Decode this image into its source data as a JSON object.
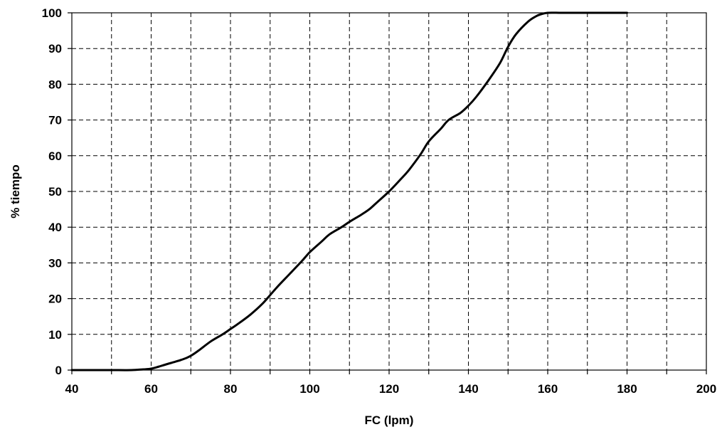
{
  "chart_data": {
    "type": "line",
    "title": "",
    "xlabel": "FC (lpm)",
    "ylabel": "% tiempo",
    "xlim": [
      40,
      200
    ],
    "ylim": [
      0,
      100
    ],
    "x_ticks": [
      40,
      60,
      80,
      100,
      120,
      140,
      160,
      180,
      200
    ],
    "y_ticks": [
      0,
      10,
      20,
      30,
      40,
      50,
      60,
      70,
      80,
      90,
      100
    ],
    "x_grid_step": 10,
    "y_grid_step": 10,
    "grid": true,
    "grid_style": "dashed",
    "legend": "none",
    "line_color": "#000000",
    "series": [
      {
        "x": [
          40,
          45,
          50,
          55,
          58,
          60,
          62,
          65,
          68,
          70,
          72,
          75,
          78,
          80,
          82,
          85,
          88,
          90,
          92,
          95,
          98,
          100,
          103,
          105,
          108,
          110,
          113,
          115,
          117,
          120,
          123,
          125,
          128,
          130,
          133,
          135,
          138,
          140,
          142,
          145,
          148,
          150,
          152,
          155,
          157,
          158,
          160,
          163,
          165,
          170,
          175,
          180
        ],
        "y": [
          0,
          0,
          0,
          0,
          0.2,
          0.4,
          1,
          2,
          3,
          4,
          5.5,
          8,
          10,
          11.5,
          13,
          15.5,
          18.5,
          21,
          23.5,
          27,
          30.5,
          33,
          36,
          38,
          40,
          41.5,
          43.5,
          45,
          47,
          50,
          53.5,
          56,
          60.5,
          64,
          67.5,
          70,
          72,
          74,
          76.5,
          81,
          86,
          90.5,
          94,
          97.5,
          99,
          99.5,
          100,
          100,
          100,
          100,
          100,
          100
        ]
      }
    ]
  }
}
